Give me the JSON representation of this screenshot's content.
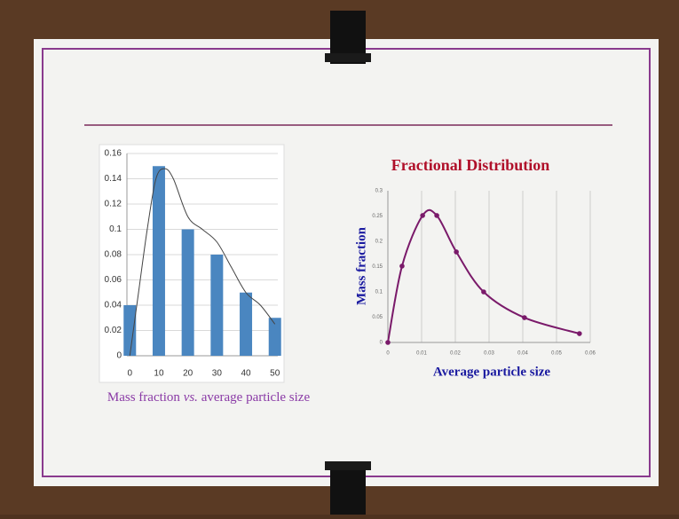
{
  "chart_data": [
    {
      "type": "bar",
      "x": [
        0,
        10,
        20,
        30,
        40,
        50
      ],
      "values": [
        0.04,
        0.15,
        0.1,
        0.08,
        0.05,
        0.03
      ],
      "color": "#4a86c0",
      "curve": {
        "x": [
          0,
          3,
          6,
          9,
          12,
          15,
          20,
          25,
          30,
          35,
          40,
          45,
          50
        ],
        "values": [
          0,
          0.05,
          0.1,
          0.14,
          0.148,
          0.14,
          0.11,
          0.1,
          0.09,
          0.07,
          0.05,
          0.04,
          0.025
        ],
        "color": "#444444"
      },
      "xlim": [
        -1,
        51
      ],
      "xticks": [
        0,
        10,
        20,
        30,
        40,
        50
      ],
      "ylim": [
        0,
        0.16
      ],
      "yticks": [
        0,
        0.02,
        0.04,
        0.06,
        0.08,
        0.1,
        0.12,
        0.14,
        0.16
      ],
      "grid": "y",
      "caption": {
        "before": "Mass fraction",
        "emphasis": "vs.",
        "after": "average particle size"
      }
    },
    {
      "type": "line",
      "title": "Fractional Distribution",
      "xlabel": "Average particle size",
      "ylabel": "Mass fraction",
      "x": [
        0,
        0.0042,
        0.0103,
        0.0145,
        0.0203,
        0.0284,
        0.0405,
        0.0568
      ],
      "values": [
        0,
        0.151,
        0.251,
        0.251,
        0.179,
        0.1,
        0.049,
        0.0175
      ],
      "color": "#7a1a6a",
      "xlim": [
        0,
        0.06
      ],
      "xticks": [
        0,
        0.01,
        0.02,
        0.03,
        0.04,
        0.05,
        0.06
      ],
      "ylim": [
        0,
        0.3
      ],
      "yticks": [
        0,
        0.05,
        0.1,
        0.15,
        0.2,
        0.25,
        0.3
      ],
      "grid": "x"
    }
  ]
}
